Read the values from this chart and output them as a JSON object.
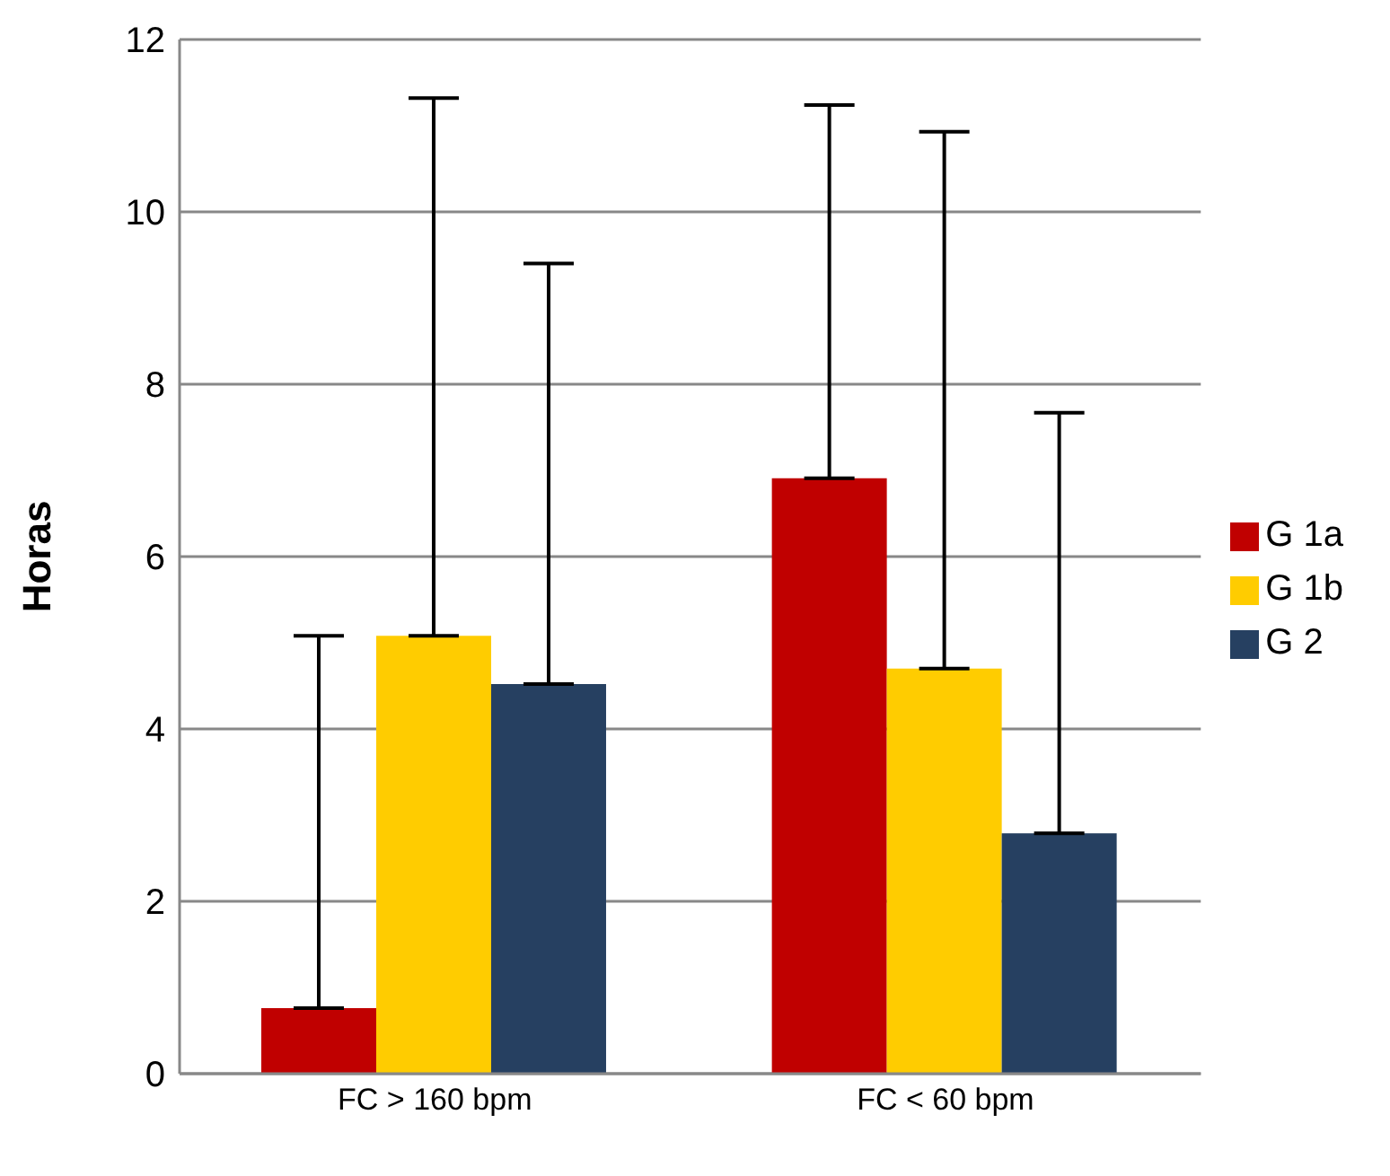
{
  "chart_data": {
    "type": "bar",
    "ylabel": "Horas",
    "categories": [
      "FC > 160 bpm",
      "FC < 60 bpm"
    ],
    "series": [
      {
        "name": "G 1a",
        "color": "#c00000",
        "values": [
          0.76,
          6.91
        ],
        "errors": [
          [
            0.76,
            5.08
          ],
          [
            6.91,
            11.24
          ]
        ]
      },
      {
        "name": "G 1b",
        "color": "#ffcc00",
        "values": [
          5.08,
          4.7
        ],
        "errors": [
          [
            5.08,
            11.32
          ],
          [
            4.7,
            10.93
          ]
        ]
      },
      {
        "name": "G 2",
        "color": "#264061",
        "values": [
          4.52,
          2.79
        ],
        "errors": [
          [
            4.52,
            9.4
          ],
          [
            2.79,
            7.67
          ]
        ]
      }
    ],
    "ylim": [
      0,
      12
    ],
    "yticks": [
      0,
      2,
      4,
      6,
      8,
      10,
      12
    ],
    "grid": "y",
    "legend": "right"
  }
}
